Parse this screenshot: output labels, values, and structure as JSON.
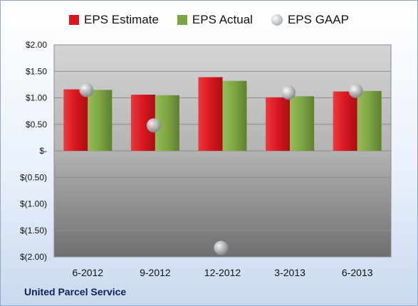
{
  "legend": {
    "estimate": "EPS Estimate",
    "actual": "EPS Actual",
    "gaap": "EPS GAAP"
  },
  "company": "United Parcel Service",
  "colors": {
    "estimate": "#d7171f",
    "actual": "#7ea443",
    "gaap": "#b9bcc0"
  },
  "chart_data": {
    "type": "bar",
    "categories": [
      "6-2012",
      "9-2012",
      "12-2012",
      "3-2013",
      "6-2013"
    ],
    "series": [
      {
        "name": "EPS Estimate",
        "values": [
          1.16,
          1.06,
          1.39,
          1.01,
          1.12
        ]
      },
      {
        "name": "EPS Actual",
        "values": [
          1.15,
          1.05,
          1.32,
          1.03,
          1.13
        ]
      },
      {
        "name": "EPS GAAP",
        "values": [
          1.15,
          0.48,
          -1.83,
          1.1,
          1.13
        ]
      }
    ],
    "ylim": [
      -2.0,
      2.0
    ],
    "ytick_values": [
      2.0,
      1.5,
      1.0,
      0.5,
      0,
      -0.5,
      -1.0,
      -1.5,
      -2.0
    ],
    "ytick_labels": [
      "$2.00",
      "$1.50",
      "$1.00",
      "$0.50",
      "$-",
      "$(0.50)",
      "$(1.00)",
      "$(1.50)",
      "$(2.00)"
    ],
    "grid": true,
    "legend_position": "top"
  }
}
